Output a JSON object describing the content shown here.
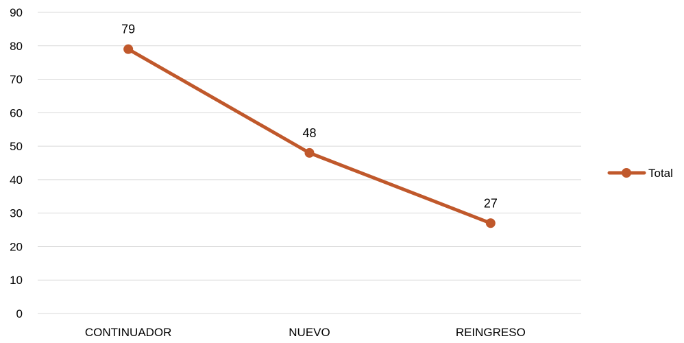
{
  "chart_data": {
    "type": "line",
    "categories": [
      "CONTINUADOR",
      "NUEVO",
      "REINGRESO"
    ],
    "series": [
      {
        "name": "Total",
        "values": [
          79,
          48,
          27
        ],
        "color": "#c0582b"
      }
    ],
    "data_labels": [
      "79",
      "48",
      "27"
    ],
    "ylim": [
      0,
      90
    ],
    "yticks": [
      0,
      10,
      20,
      30,
      40,
      50,
      60,
      70,
      80,
      90
    ],
    "grid": true,
    "gridline_color": "#d9d9d9",
    "legend_position": "right"
  }
}
